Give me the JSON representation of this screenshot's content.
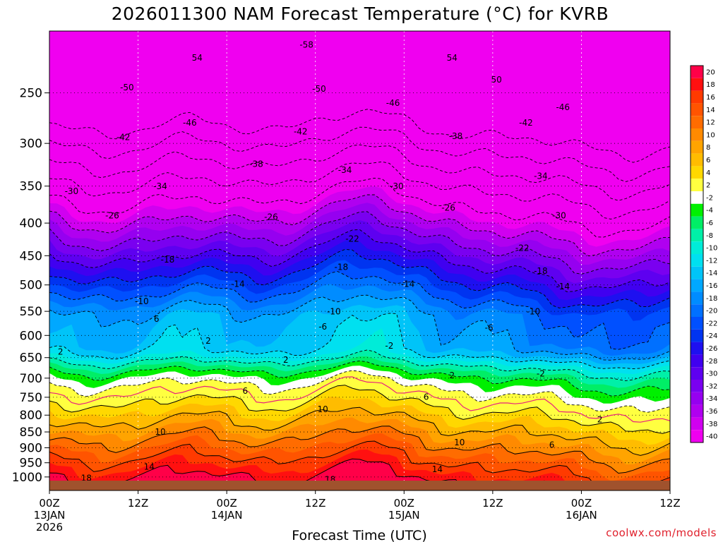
{
  "title": "2026011300 NAM Forecast Temperature (°C) for KVRB",
  "credit": "coolwx.com/models",
  "chart_data": {
    "type": "heatmap",
    "title": "2026011300 NAM Forecast Temperature (°C) for KVRB",
    "xlabel": "Forecast Time (UTC)",
    "ylabel": "",
    "y_scale": "log-pressure",
    "y_reversed": true,
    "xlim": [
      0,
      84
    ],
    "ylim": [
      1050,
      200
    ],
    "x_ticks": [
      {
        "hour": 0,
        "lines": [
          "00Z",
          "13JAN",
          "2026"
        ]
      },
      {
        "hour": 12,
        "lines": [
          "12Z"
        ]
      },
      {
        "hour": 24,
        "lines": [
          "00Z",
          "14JAN"
        ]
      },
      {
        "hour": 36,
        "lines": [
          "12Z"
        ]
      },
      {
        "hour": 48,
        "lines": [
          "00Z",
          "15JAN"
        ]
      },
      {
        "hour": 60,
        "lines": [
          "12Z"
        ]
      },
      {
        "hour": 72,
        "lines": [
          "00Z",
          "16JAN"
        ]
      },
      {
        "hour": 84,
        "lines": [
          "12Z"
        ]
      }
    ],
    "y_ticks": [
      250,
      300,
      350,
      400,
      450,
      500,
      550,
      600,
      650,
      700,
      750,
      800,
      850,
      900,
      950,
      1000
    ],
    "grid": true,
    "colorbar": {
      "levels": [
        20,
        18,
        16,
        14,
        12,
        10,
        8,
        6,
        4,
        2,
        -2,
        -4,
        -6,
        -8,
        -10,
        -12,
        -14,
        -16,
        -18,
        -20,
        -22,
        -24,
        -26,
        -28,
        -30,
        -32,
        -34,
        -36,
        -38,
        -40
      ],
      "colors": [
        "#ff0048",
        "#ff1010",
        "#ff3a00",
        "#ff5400",
        "#ff6c00",
        "#ff8a00",
        "#ffa400",
        "#ffbc00",
        "#ffd800",
        "#ffff40",
        "#ffffff",
        "#00f000",
        "#00ee66",
        "#00f0a8",
        "#00ecd8",
        "#00e0f0",
        "#00c4f8",
        "#00a8ff",
        "#008cff",
        "#0070ff",
        "#0050ff",
        "#0034f0",
        "#1e10f0",
        "#4000f0",
        "#5e00f0",
        "#7a00f0",
        "#9600f0",
        "#b000f0",
        "#d000f0",
        "#f000f0"
      ]
    },
    "isotherm_labels": [
      {
        "value": "-58",
        "hour": 34.8,
        "pressure": 210
      },
      {
        "value": "54",
        "hour": 20,
        "pressure": 220
      },
      {
        "value": "54",
        "hour": 54.5,
        "pressure": 220
      },
      {
        "value": "-50",
        "hour": 10.5,
        "pressure": 245
      },
      {
        "value": "-50",
        "hour": 36.5,
        "pressure": 246
      },
      {
        "value": "50",
        "hour": 60.5,
        "pressure": 238
      },
      {
        "value": "-46",
        "hour": 46.5,
        "pressure": 259
      },
      {
        "value": "-46",
        "hour": 69.5,
        "pressure": 263
      },
      {
        "value": "-46",
        "hour": 19,
        "pressure": 278
      },
      {
        "value": "-42",
        "hour": 34,
        "pressure": 287
      },
      {
        "value": "-42",
        "hour": 64.5,
        "pressure": 278
      },
      {
        "value": "-42",
        "hour": 10,
        "pressure": 293
      },
      {
        "value": "-38",
        "hour": 55,
        "pressure": 292
      },
      {
        "value": "-38",
        "hour": 28,
        "pressure": 323
      },
      {
        "value": "-34",
        "hour": 40,
        "pressure": 330
      },
      {
        "value": "-34",
        "hour": 15,
        "pressure": 350
      },
      {
        "value": "-34",
        "hour": 66.5,
        "pressure": 337
      },
      {
        "value": "-30",
        "hour": 47,
        "pressure": 350
      },
      {
        "value": "-30",
        "hour": 3,
        "pressure": 356
      },
      {
        "value": "-30",
        "hour": 69,
        "pressure": 389
      },
      {
        "value": "-26",
        "hour": 54,
        "pressure": 378
      },
      {
        "value": "-26",
        "hour": 8.5,
        "pressure": 389
      },
      {
        "value": "-26",
        "hour": 30,
        "pressure": 391
      },
      {
        "value": "-22",
        "hour": 41,
        "pressure": 423
      },
      {
        "value": "-22",
        "hour": 64,
        "pressure": 437
      },
      {
        "value": "-18",
        "hour": 16,
        "pressure": 456
      },
      {
        "value": "-18",
        "hour": 39.5,
        "pressure": 468
      },
      {
        "value": "-18",
        "hour": 66.5,
        "pressure": 475
      },
      {
        "value": "-14",
        "hour": 25.5,
        "pressure": 498
      },
      {
        "value": "-14",
        "hour": 48.5,
        "pressure": 498
      },
      {
        "value": "-14",
        "hour": 69.5,
        "pressure": 502
      },
      {
        "value": "-10",
        "hour": 12.5,
        "pressure": 530
      },
      {
        "value": "-10",
        "hour": 38.5,
        "pressure": 550
      },
      {
        "value": "-10",
        "hour": 65.5,
        "pressure": 550
      },
      {
        "value": "6",
        "hour": 14.5,
        "pressure": 565
      },
      {
        "value": "-6",
        "hour": 37,
        "pressure": 581
      },
      {
        "value": "-6",
        "hour": 59.5,
        "pressure": 583
      },
      {
        "value": "2",
        "hour": 21.5,
        "pressure": 611
      },
      {
        "value": "-2",
        "hour": 46,
        "pressure": 622
      },
      {
        "value": "2",
        "hour": 1.5,
        "pressure": 636
      },
      {
        "value": "2",
        "hour": 32,
        "pressure": 655
      },
      {
        "value": "2",
        "hour": 54.5,
        "pressure": 692
      },
      {
        "value": "-2",
        "hour": 66.5,
        "pressure": 688
      },
      {
        "value": "6",
        "hour": 26.5,
        "pressure": 732
      },
      {
        "value": "6",
        "hour": 51,
        "pressure": 748
      },
      {
        "value": "10",
        "hour": 37,
        "pressure": 782
      },
      {
        "value": "2",
        "hour": 74.5,
        "pressure": 812
      },
      {
        "value": "10",
        "hour": 15,
        "pressure": 849
      },
      {
        "value": "10",
        "hour": 55.5,
        "pressure": 882
      },
      {
        "value": "6",
        "hour": 68,
        "pressure": 890
      },
      {
        "value": "14",
        "hour": 13.5,
        "pressure": 963
      },
      {
        "value": "14",
        "hour": 52.5,
        "pressure": 972
      },
      {
        "value": "18",
        "hour": 5,
        "pressure": 1003
      },
      {
        "value": "18",
        "hour": 38,
        "pressure": 1008
      }
    ]
  }
}
